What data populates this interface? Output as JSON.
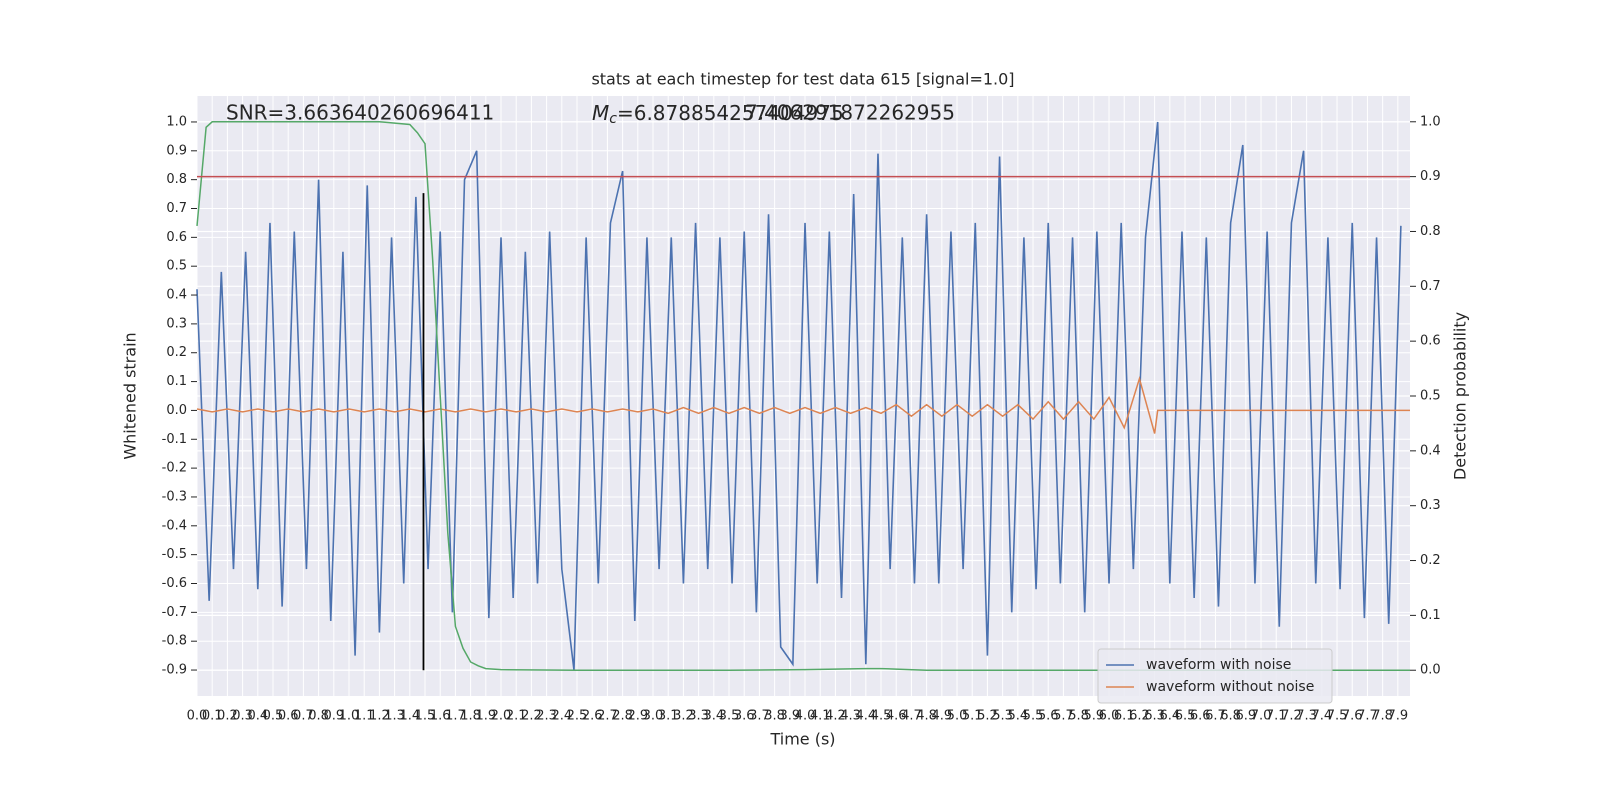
{
  "chart_data": {
    "type": "line",
    "title": "stats at each timestep for test data 615 [signal=1.0]",
    "xlabel": "Time (s)",
    "ylabel": "Whitened strain",
    "y2label": "Detection probability",
    "xlim": [
      0,
      7.98
    ],
    "ylim": [
      -0.99,
      1.09
    ],
    "y2lim": [
      -0.047,
      1.047
    ],
    "grid": true,
    "legend": "lower right",
    "xticks": [
      {
        "value": 0,
        "label": "0.0"
      },
      0.1,
      0.2,
      0.3,
      0.4,
      0.5,
      0.6,
      0.7,
      0.8,
      0.9,
      {
        "value": 1,
        "label": "1.0"
      },
      1.1,
      1.2,
      1.3,
      1.4,
      1.5,
      1.6,
      1.7,
      1.8,
      1.9,
      {
        "value": 2,
        "label": "2.0"
      },
      2.1,
      2.2,
      2.3,
      2.4,
      2.5,
      2.6,
      2.7,
      2.8,
      2.9,
      {
        "value": 3,
        "label": "3.0"
      },
      3.1,
      3.2,
      3.3,
      3.4,
      3.5,
      3.6,
      3.7,
      3.8,
      3.9,
      {
        "value": 4,
        "label": "4.0"
      },
      4.1,
      4.2,
      4.3,
      4.4,
      4.5,
      4.6,
      4.7,
      4.8,
      4.9,
      {
        "value": 5,
        "label": "5.0"
      },
      5.1,
      5.2,
      5.3,
      5.4,
      5.5,
      5.6,
      5.7,
      5.8,
      5.9,
      {
        "value": 6,
        "label": "6.0"
      },
      6.1,
      6.2,
      6.3,
      6.4,
      6.5,
      6.6,
      6.7,
      6.8,
      6.9,
      {
        "value": 7,
        "label": "7.0"
      },
      7.1,
      7.2,
      7.3,
      7.4,
      7.5,
      7.6,
      7.7,
      7.8,
      7.9
    ],
    "yticks": [
      -0.9,
      -0.8,
      -0.7,
      -0.6,
      -0.5,
      -0.4,
      -0.3,
      -0.2,
      -0.1,
      {
        "value": 0,
        "label": "0.0"
      },
      0.1,
      0.2,
      0.3,
      0.4,
      0.5,
      0.6,
      0.7,
      0.8,
      0.9,
      {
        "value": 1,
        "label": "1.0"
      }
    ],
    "y2ticks": [
      {
        "value": 0,
        "label": "0.0"
      },
      0.1,
      0.2,
      0.3,
      0.4,
      0.5,
      0.6,
      0.7,
      0.8,
      0.9,
      {
        "value": 1,
        "label": "1.0"
      }
    ],
    "annotations": [
      {
        "text": "SNR=3.663640260696411"
      },
      {
        "symbol": "M",
        "subscript": "c",
        "text": "=6.878854257404975"
      },
      {
        "text": "7.406291872262955"
      }
    ],
    "series": [
      {
        "name": "waveform with noise",
        "color": "#4c72b0",
        "x": [
          0,
          0.08,
          0.16,
          0.24,
          0.32,
          0.4,
          0.48,
          0.56,
          0.64,
          0.72,
          0.8,
          0.88,
          0.96,
          1.04,
          1.12,
          1.2,
          1.28,
          1.36,
          1.44,
          1.52,
          1.6,
          1.68,
          1.76,
          1.84,
          1.92,
          2,
          2.08,
          2.16,
          2.24,
          2.32,
          2.4,
          2.48,
          2.56,
          2.64,
          2.72,
          2.8,
          2.88,
          2.96,
          3.04,
          3.12,
          3.2,
          3.28,
          3.36,
          3.44,
          3.52,
          3.6,
          3.68,
          3.76,
          3.84,
          3.92,
          4,
          4.08,
          4.16,
          4.24,
          4.32,
          4.4,
          4.48,
          4.56,
          4.64,
          4.72,
          4.8,
          4.88,
          4.96,
          5.04,
          5.12,
          5.2,
          5.28,
          5.36,
          5.44,
          5.52,
          5.6,
          5.68,
          5.76,
          5.84,
          5.92,
          6,
          6.08,
          6.16,
          6.24,
          6.32,
          6.4,
          6.48,
          6.56,
          6.64,
          6.72,
          6.8,
          6.88,
          6.96,
          7.04,
          7.12,
          7.2,
          7.28,
          7.36,
          7.44,
          7.52,
          7.6,
          7.68,
          7.76,
          7.84,
          7.92
        ],
        "values": [
          0.42,
          -0.66,
          0.48,
          -0.55,
          0.55,
          -0.62,
          0.65,
          -0.68,
          0.62,
          -0.55,
          0.8,
          -0.73,
          0.55,
          -0.85,
          0.78,
          -0.77,
          0.6,
          -0.6,
          0.74,
          -0.55,
          0.62,
          -0.7,
          0.8,
          0.9,
          -0.72,
          0.6,
          -0.65,
          0.55,
          -0.6,
          0.62,
          -0.55,
          -0.9,
          0.6,
          -0.6,
          0.65,
          0.83,
          -0.73,
          0.6,
          -0.55,
          0.6,
          -0.6,
          0.65,
          -0.55,
          0.6,
          -0.6,
          0.62,
          -0.7,
          0.68,
          -0.82,
          -0.88,
          0.65,
          -0.6,
          0.62,
          -0.65,
          0.75,
          -0.88,
          0.89,
          -0.55,
          0.6,
          -0.6,
          0.68,
          -0.6,
          0.62,
          -0.55,
          0.65,
          -0.85,
          0.88,
          -0.7,
          0.6,
          -0.62,
          0.65,
          -0.6,
          0.6,
          -0.7,
          0.62,
          -0.6,
          0.65,
          -0.55,
          0.6,
          1.0,
          -0.6,
          0.62,
          -0.65,
          0.6,
          -0.68,
          0.65,
          0.92,
          -0.6,
          0.62,
          -0.75,
          0.65,
          0.9,
          -0.6,
          0.6,
          -0.62,
          0.65,
          -0.72,
          0.6,
          -0.74,
          0.64
        ]
      },
      {
        "name": "waveform without noise",
        "color": "#dd8452",
        "x": [
          0,
          0.1,
          0.2,
          0.3,
          0.4,
          0.5,
          0.6,
          0.7,
          0.8,
          0.9,
          1,
          1.1,
          1.2,
          1.3,
          1.4,
          1.5,
          1.6,
          1.7,
          1.8,
          1.9,
          2,
          2.1,
          2.2,
          2.3,
          2.4,
          2.5,
          2.6,
          2.7,
          2.8,
          2.9,
          3,
          3.1,
          3.2,
          3.3,
          3.4,
          3.5,
          3.6,
          3.7,
          3.8,
          3.9,
          4,
          4.1,
          4.2,
          4.3,
          4.4,
          4.5,
          4.6,
          4.7,
          4.8,
          4.9,
          5,
          5.1,
          5.2,
          5.3,
          5.4,
          5.5,
          5.6,
          5.7,
          5.8,
          5.9,
          6,
          6.1,
          6.2,
          6.3,
          6.32,
          7.98
        ],
        "values": [
          0.005,
          -0.005,
          0.005,
          -0.005,
          0.005,
          -0.005,
          0.005,
          -0.005,
          0.005,
          -0.005,
          0.005,
          -0.005,
          0.005,
          -0.005,
          0.005,
          -0.005,
          0.005,
          -0.005,
          0.005,
          -0.005,
          0.005,
          -0.005,
          0.005,
          -0.005,
          0.005,
          -0.005,
          0.005,
          -0.005,
          0.005,
          -0.005,
          0.005,
          -0.01,
          0.01,
          -0.01,
          0.01,
          -0.01,
          0.01,
          -0.01,
          0.01,
          -0.01,
          0.01,
          -0.01,
          0.01,
          -0.01,
          0.01,
          -0.01,
          0.02,
          -0.02,
          0.02,
          -0.02,
          0.02,
          -0.02,
          0.02,
          -0.02,
          0.02,
          -0.03,
          0.03,
          -0.03,
          0.03,
          -0.03,
          0.045,
          -0.06,
          0.11,
          -0.08,
          0,
          0
        ]
      },
      {
        "color": "#55a868",
        "axis": "y2",
        "x": [
          0,
          0.06,
          0.1,
          0.2,
          0.4,
          0.6,
          0.8,
          1.0,
          1.2,
          1.4,
          1.45,
          1.5,
          1.55,
          1.6,
          1.65,
          1.7,
          1.75,
          1.8,
          1.85,
          1.9,
          2.0,
          2.5,
          3.0,
          3.5,
          4.0,
          4.4,
          4.5,
          4.8,
          5.5,
          6.5,
          7.98
        ],
        "values": [
          0.81,
          0.99,
          1.0,
          1.0,
          1.0,
          1.0,
          1.0,
          1.0,
          1.0,
          0.995,
          0.98,
          0.96,
          0.75,
          0.5,
          0.25,
          0.08,
          0.04,
          0.015,
          0.008,
          0.003,
          0.001,
          0,
          0,
          0,
          0.001,
          0.003,
          0.003,
          0,
          0,
          0,
          0
        ]
      }
    ],
    "hlines": [
      {
        "y": 0.9,
        "axis": "y2",
        "color": "#c44e52"
      }
    ],
    "vlines": [
      {
        "x": 1.49,
        "y": [
          0,
          0.87
        ],
        "axis": "y2",
        "color": "#000000"
      }
    ]
  }
}
